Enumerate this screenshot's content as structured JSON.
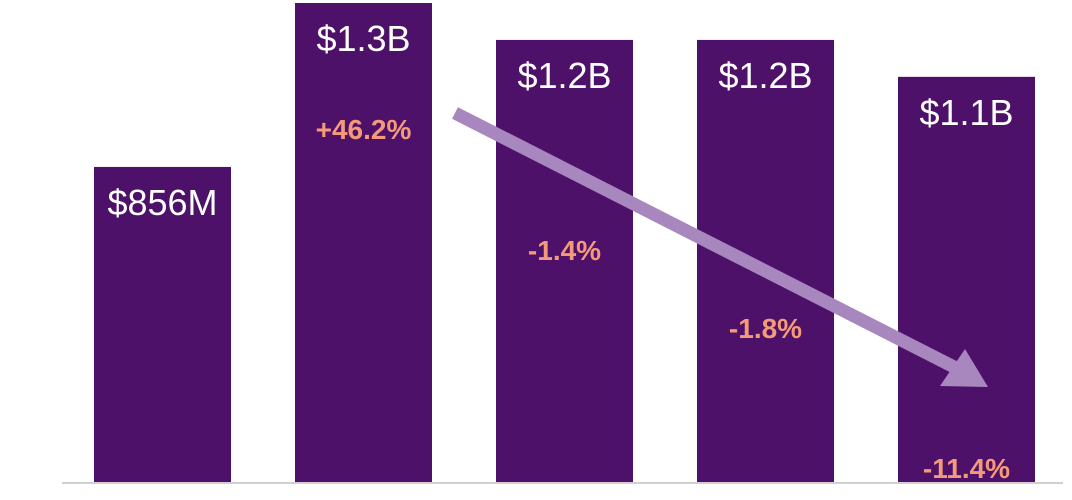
{
  "chart_data": {
    "type": "bar",
    "title": "",
    "xlabel": "",
    "ylabel": "",
    "categories": [
      "",
      "",
      "",
      "",
      ""
    ],
    "values_usd_billions": [
      0.856,
      1.3,
      1.2,
      1.2,
      1.1
    ],
    "value_labels": [
      "$856M",
      "$1.3B",
      "$1.2B",
      "$1.2B",
      "$1.1B"
    ],
    "change_labels": [
      "",
      "+46.2%",
      "-1.4%",
      "-1.8%",
      "-11.4%"
    ],
    "ylim": [
      0,
      1.3
    ],
    "grid": false,
    "legend": "none",
    "annotations": [
      {
        "type": "trend-arrow",
        "direction": "down",
        "from_bar": 2,
        "to_bar": 5
      }
    ]
  },
  "colors": {
    "bar": "#4e1169",
    "value_text": "#ffffff",
    "change_text": "#f59a78",
    "trend_arrow": "#a787be",
    "baseline": "#d0d0d0"
  }
}
